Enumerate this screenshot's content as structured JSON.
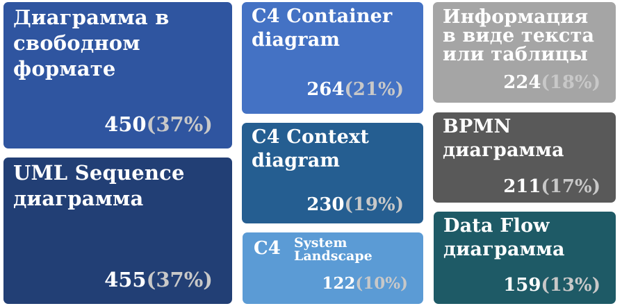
{
  "chart_data": {
    "type": "treemap",
    "items": [
      {
        "label": "Диаграмма в\nсвободном\nформате",
        "value": 450,
        "percent": "37%",
        "color": "#2f55a0"
      },
      {
        "label": "UML Sequence\nдиаграмма",
        "value": 455,
        "percent": "37%",
        "color": "#223f75"
      },
      {
        "label": "C4 Container\ndiagram",
        "value": 264,
        "percent": "21%",
        "color": "#4472c4"
      },
      {
        "label": "C4 Context\ndiagram",
        "value": 230,
        "percent": "19%",
        "color": "#255e91"
      },
      {
        "label_main": "C4",
        "label_sub": "System\nLandscape",
        "value": 122,
        "percent": "10%",
        "color": "#5b9bd5"
      },
      {
        "label": "Информация\nв виде текста\nили таблицы",
        "value": 224,
        "percent": "18%",
        "color": "#a5a5a5"
      },
      {
        "label": "BPMN\nдиаграмма",
        "value": 211,
        "percent": "17%",
        "color": "#595959"
      },
      {
        "label": "Data Flow\nдиаграмма",
        "value": 159,
        "percent": "13%",
        "color": "#1e5a66"
      }
    ]
  }
}
